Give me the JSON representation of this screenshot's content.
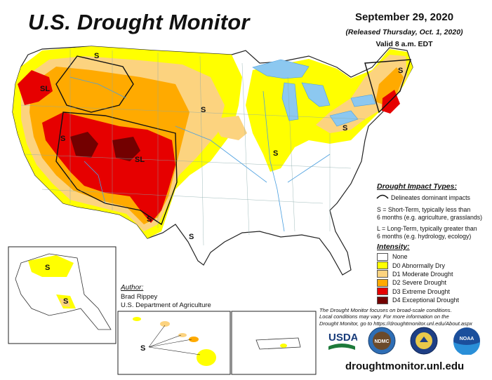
{
  "header": {
    "title": "U.S. Drought Monitor",
    "date": "September 29, 2020",
    "released": "(Released Thursday, Oct. 1, 2020)",
    "valid": "Valid 8 a.m. EDT"
  },
  "impact_legend": {
    "heading": "Drought Impact Types:",
    "delineates": "Delineates dominant impacts",
    "s_line1": "S = Short-Term, typically less than",
    "s_line2": "6 months (e.g. agriculture, grasslands)",
    "l_line1": "L = Long-Term, typically greater than",
    "l_line2": "6 months (e.g. hydrology, ecology)"
  },
  "intensity_legend": {
    "heading": "Intensity:",
    "items": [
      {
        "label": "None",
        "color": "#ffffff"
      },
      {
        "label": "D0 Abnormally Dry",
        "color": "#ffff00"
      },
      {
        "label": "D1 Moderate Drought",
        "color": "#fcd37f"
      },
      {
        "label": "D2 Severe Drought",
        "color": "#ffaa00"
      },
      {
        "label": "D3 Extreme Drought",
        "color": "#e60000"
      },
      {
        "label": "D4 Exceptional Drought",
        "color": "#730000"
      }
    ]
  },
  "author": {
    "heading": "Author:",
    "name": "Brad Rippey",
    "org": "U.S. Department of Agriculture"
  },
  "note": {
    "line1": "The Drought Monitor focuses on broad-scale conditions.",
    "line2": "Local conditions may vary. For more information on the",
    "line3": "Drought Monitor, go to https://droughtmonitor.unl.edu/About.aspx"
  },
  "map_labels": {
    "s": "S",
    "sl": "SL"
  },
  "logos": {
    "usda": "USDA",
    "ndmc": "NDMC",
    "noaa": "NOAA"
  },
  "footer": {
    "site": "droughtmonitor.unl.edu"
  },
  "colors": {
    "none": "#ffffff",
    "d0": "#ffff00",
    "d1": "#fcd37f",
    "d2": "#ffaa00",
    "d3": "#e60000",
    "d4": "#730000",
    "water": "#8cc8f0",
    "river": "#4a9fe0"
  }
}
